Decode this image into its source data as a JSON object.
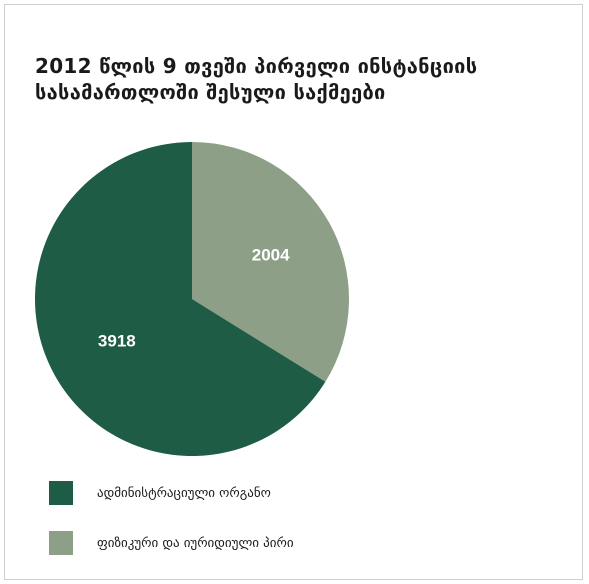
{
  "title_lines": [
    "2012 წლის 9 თვეში პირველი ინსტანციის",
    "სასამართლოში შესული საქმეები"
  ],
  "colors": {
    "dark": "#1e5c45",
    "light": "#8e9f88"
  },
  "chart_data": {
    "type": "pie",
    "title": "2012 წლის 9 თვეში პირველი ინსტანციის სასამართლოში შესული საქმეები",
    "start": "12 o'clock, clockwise",
    "slices": [
      {
        "label": "ფიზიკური და იურიდიული პირი",
        "value": 2004,
        "color": "#8e9f88"
      },
      {
        "label": "ადმინისტრაციული ორგანო",
        "value": 3918,
        "color": "#1e5c45"
      }
    ],
    "legend_placement": "bottom-left"
  },
  "legend": [
    {
      "label": "ადმინისტრაციული ორგანო",
      "color": "#1e5c45"
    },
    {
      "label": "ფიზიკური და იურიდიული პირი",
      "color": "#8e9f88"
    }
  ]
}
